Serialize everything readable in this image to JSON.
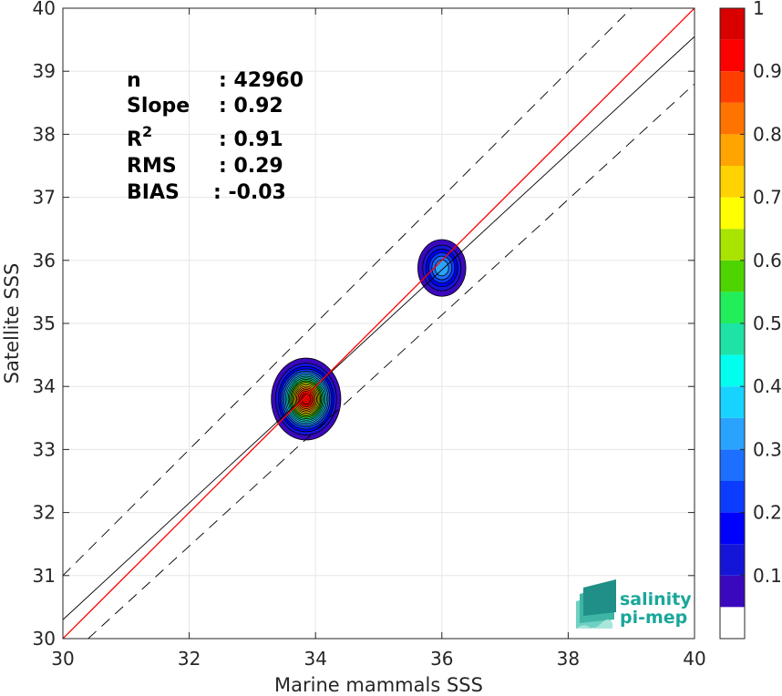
{
  "chart_data": {
    "type": "contour",
    "xlabel": "Marine mammals SSS",
    "ylabel": "Satellite SSS",
    "xlim": [
      30,
      40
    ],
    "ylim": [
      30,
      40
    ],
    "xticks": [
      30,
      32,
      34,
      36,
      38,
      40
    ],
    "yticks": [
      30,
      31,
      32,
      33,
      34,
      35,
      36,
      37,
      38,
      39,
      40
    ],
    "grid": true,
    "stats": [
      {
        "key": "n",
        "sep": ":",
        "value": "42960"
      },
      {
        "key": "Slope",
        "sep": ":",
        "value": "0.92"
      },
      {
        "key": "R",
        "sup": "2",
        "sep": ":",
        "value": "0.91"
      },
      {
        "key": "RMS",
        "sep": ":",
        "value": "0.29"
      },
      {
        "key": "BIAS",
        "sep": ":",
        "value": "-0.03"
      }
    ],
    "lines": {
      "identity": {
        "x": [
          30,
          40
        ],
        "y": [
          30,
          40
        ],
        "color": "#ff0000"
      },
      "fit": {
        "x": [
          30,
          40
        ],
        "y": [
          30.3,
          39.55
        ],
        "color": "#000000"
      },
      "upper_bound": {
        "x": [
          30,
          40
        ],
        "y": [
          31.0,
          41.0
        ],
        "style": "dashed"
      },
      "lower_bound": {
        "x": [
          30.4,
          40
        ],
        "y": [
          30,
          38.8
        ],
        "style": "dashed"
      }
    },
    "density_clusters": [
      {
        "center_x": 33.85,
        "center_y": 33.8,
        "radius_x": 0.55,
        "radius_y": 0.65,
        "peak": 1.0
      },
      {
        "center_x": 36.0,
        "center_y": 35.88,
        "radius_x": 0.38,
        "radius_y": 0.45,
        "peak": 0.35
      }
    ],
    "colorbar": {
      "ticks": [
        0.1,
        0.2,
        0.3,
        0.4,
        0.5,
        0.6,
        0.7,
        0.8,
        0.9,
        1
      ],
      "levels": [
        0,
        0.05,
        0.1,
        0.15,
        0.2,
        0.25,
        0.3,
        0.35,
        0.4,
        0.45,
        0.5,
        0.55,
        0.6,
        0.65,
        0.7,
        0.75,
        0.8,
        0.85,
        0.9,
        0.95,
        1.0
      ],
      "colors": [
        "#ffffff",
        "#5d05a8",
        "#3b09bd",
        "#1515d8",
        "#0000ff",
        "#0b3cff",
        "#1c6fff",
        "#2aa3ff",
        "#18d2ff",
        "#00ffee",
        "#1de3a7",
        "#22ee5a",
        "#4ed400",
        "#a8e400",
        "#ffff00",
        "#ffd200",
        "#ffa400",
        "#ff7400",
        "#ff3f00",
        "#ff0000",
        "#d90000",
        "#9c0000"
      ]
    }
  },
  "logo": {
    "line1": "salinity",
    "line2": "pi-mep"
  }
}
